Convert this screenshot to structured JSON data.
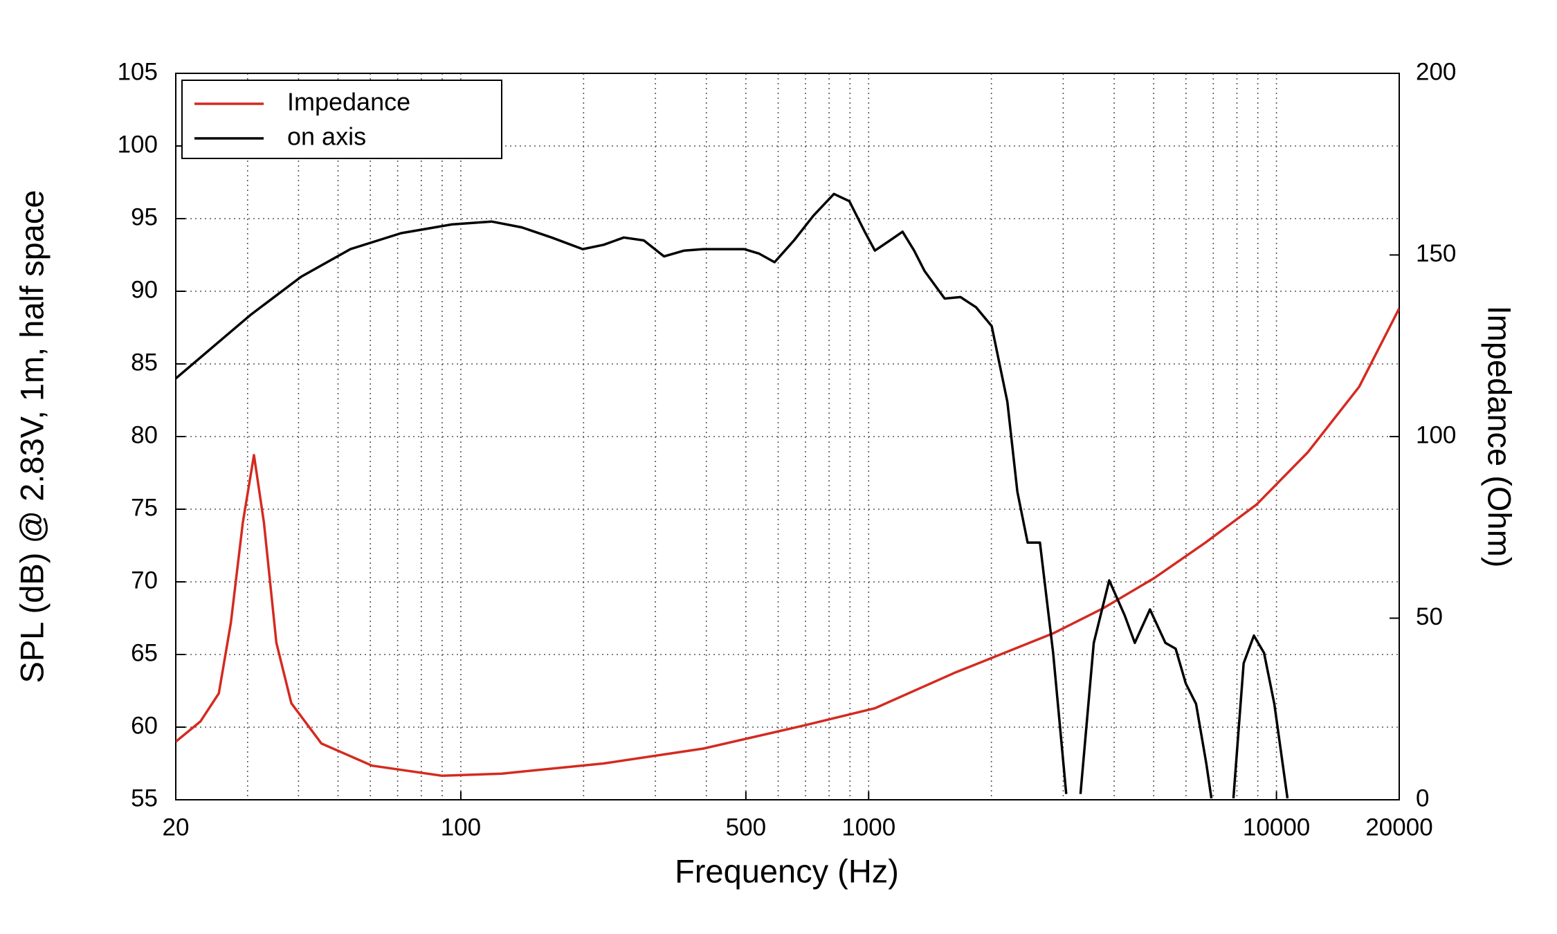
{
  "chart_data": {
    "type": "line",
    "xlabel": "Frequency (Hz)",
    "ylabel": "SPL (dB) @ 2.83V, 1m, half space",
    "y2label": "Impedance (Ohm)",
    "xscale": "log",
    "xlim": [
      20,
      20000
    ],
    "xticks": [
      20,
      100,
      500,
      1000,
      10000,
      20000
    ],
    "x_minor_grid": [
      30,
      40,
      50,
      60,
      70,
      80,
      90,
      200,
      300,
      400,
      600,
      700,
      800,
      900,
      2000,
      3000,
      4000,
      5000,
      6000,
      7000,
      8000,
      9000
    ],
    "ylim": [
      55,
      105
    ],
    "yticks": [
      55,
      60,
      65,
      70,
      75,
      80,
      85,
      90,
      95,
      100,
      105
    ],
    "y2lim": [
      0,
      200
    ],
    "y2ticks": [
      0,
      50,
      100,
      150,
      200
    ],
    "grid": true,
    "legend": "upper left",
    "series": [
      {
        "name": "Impedance",
        "color": "#d42a20",
        "axis": "y2",
        "x": [
          20,
          23,
          25.5,
          27.3,
          29.2,
          31.1,
          32.9,
          35.3,
          38.4,
          45.5,
          60.6,
          90,
          126,
          224,
          393,
          696,
          1036,
          1620,
          2845,
          3770,
          5025,
          6695,
          8940,
          11940,
          15950,
          20000
        ],
        "values": [
          16.0,
          21.6,
          29.3,
          48.7,
          76.3,
          94.9,
          76.3,
          43.2,
          26.6,
          15.5,
          9.4,
          6.6,
          7.2,
          10.0,
          14.1,
          20.5,
          25.2,
          34.9,
          45.9,
          52.8,
          61.1,
          70.8,
          81.3,
          95.7,
          113.7,
          135.3
        ]
      },
      {
        "name": "on axis",
        "color": "#000000",
        "x": [
          20,
          30.6,
          40.6,
          53.6,
          71.4,
          95,
          119,
          141,
          167,
          199,
          224,
          251,
          281,
          315,
          353,
          393,
          495,
          538,
          588,
          656,
          732,
          822,
          897,
          978,
          1036,
          1128,
          1211,
          1293,
          1371,
          1536,
          1680,
          1834,
          2003,
          2188,
          2316,
          2454,
          2630,
          2834,
          3051,
          3180,
          3307,
          3565,
          3890,
          4244,
          4494,
          4896,
          5341,
          5659,
          5995,
          6351,
          6728,
          6926,
          7400,
          7844,
          8310,
          8803,
          9326,
          9880,
          10640
        ],
        "values": [
          84.0,
          88.4,
          91.0,
          92.9,
          94.0,
          94.6,
          94.8,
          94.4,
          93.7,
          92.9,
          93.2,
          93.7,
          93.5,
          92.4,
          92.8,
          92.9,
          92.9,
          92.6,
          92.0,
          93.5,
          95.2,
          96.7,
          96.2,
          94.1,
          92.8,
          93.5,
          94.1,
          92.8,
          91.4,
          89.5,
          89.6,
          88.9,
          87.6,
          82.4,
          76.2,
          72.7,
          72.7,
          65.1,
          55.4,
          null,
          55.4,
          65.8,
          70.1,
          67.7,
          65.8,
          68.1,
          65.8,
          65.4,
          63.0,
          61.6,
          57.5,
          55.1,
          null,
          55.1,
          64.4,
          66.3,
          65.1,
          61.6,
          55.1
        ]
      }
    ]
  }
}
